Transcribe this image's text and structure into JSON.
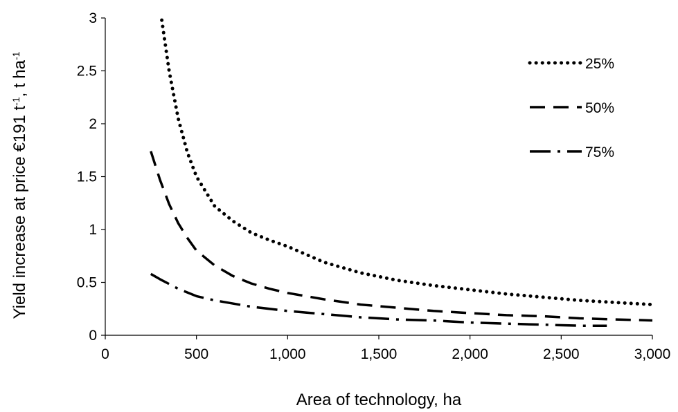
{
  "chart_data": {
    "type": "line",
    "title": "",
    "xlabel": "Area of technology, ha",
    "ylabel_parts": [
      "Yield increase at price €191 t",
      "-1",
      ", t ha",
      "-1"
    ],
    "xlim": [
      0,
      3000
    ],
    "ylim": [
      0,
      3
    ],
    "x_ticks": [
      0,
      500,
      1000,
      1500,
      2000,
      2500,
      3000
    ],
    "x_tick_labels": [
      "0",
      "500",
      "1,000",
      "1,500",
      "2,000",
      "2,500",
      "3,000"
    ],
    "y_ticks": [
      0,
      0.5,
      1,
      1.5,
      2,
      2.5,
      3
    ],
    "y_tick_labels": [
      "0",
      "0.5",
      "1",
      "1.5",
      "2",
      "2.5",
      "3"
    ],
    "grid": false,
    "legend_position": "top-right",
    "series": [
      {
        "name": "25%",
        "line_style": "dotted",
        "x": [
          310,
          350,
          400,
          450,
          500,
          600,
          700,
          800,
          900,
          1000,
          1200,
          1400,
          1600,
          1800,
          2000,
          2200,
          2400,
          2600,
          2800,
          3000
        ],
        "y": [
          2.98,
          2.5,
          2.05,
          1.73,
          1.5,
          1.22,
          1.08,
          0.97,
          0.9,
          0.84,
          0.69,
          0.59,
          0.52,
          0.47,
          0.43,
          0.39,
          0.36,
          0.33,
          0.31,
          0.29
        ]
      },
      {
        "name": "50%",
        "line_style": "dashed",
        "x": [
          250,
          300,
          350,
          400,
          450,
          500,
          600,
          700,
          800,
          900,
          1000,
          1200,
          1400,
          1600,
          1800,
          2000,
          2200,
          2400,
          2600,
          2800,
          3000
        ],
        "y": [
          1.74,
          1.47,
          1.24,
          1.06,
          0.92,
          0.8,
          0.66,
          0.56,
          0.49,
          0.44,
          0.4,
          0.34,
          0.29,
          0.26,
          0.23,
          0.21,
          0.19,
          0.18,
          0.16,
          0.15,
          0.14
        ]
      },
      {
        "name": "75%",
        "line_style": "dash-dot",
        "x": [
          250,
          300,
          400,
          500,
          600,
          800,
          1000,
          1200,
          1400,
          1600,
          1800,
          2000,
          2200,
          2400,
          2600,
          2750
        ],
        "y": [
          0.58,
          0.53,
          0.44,
          0.37,
          0.33,
          0.27,
          0.23,
          0.2,
          0.17,
          0.15,
          0.14,
          0.12,
          0.11,
          0.1,
          0.09,
          0.09
        ]
      }
    ]
  }
}
